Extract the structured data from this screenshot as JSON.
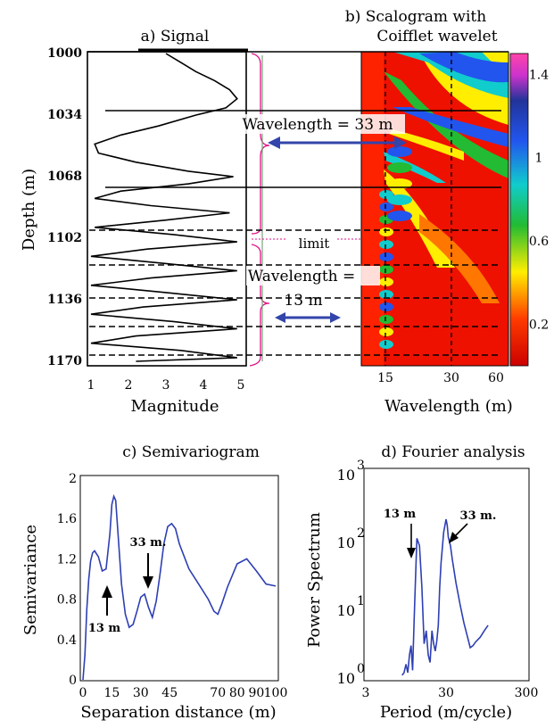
{
  "chart_data": [
    {
      "panel": "a",
      "type": "line",
      "title": "a) Signal",
      "xlabel": "Magnitude",
      "ylabel": "Depth (m)",
      "xlim": [
        1,
        5
      ],
      "ylim": [
        1000,
        1170
      ],
      "x_ticks": [
        "1",
        "2",
        "3",
        "4",
        "5"
      ],
      "y_ticks": [
        "1000",
        "1034",
        "1068",
        "1102",
        "1136",
        "1170"
      ],
      "series": [
        {
          "depth": [
            1000,
            1005,
            1010,
            1015,
            1020,
            1025,
            1030,
            1034,
            1040,
            1045,
            1050,
            1055,
            1060,
            1065,
            1068,
            1072,
            1076,
            1080,
            1084,
            1088,
            1092,
            1096,
            1100,
            1104,
            1108,
            1112,
            1116,
            1120,
            1124,
            1128,
            1132,
            1136,
            1140,
            1144,
            1148,
            1152,
            1156,
            1160,
            1164,
            1168,
            1170
          ],
          "magnitude": [
            3.0,
            3.4,
            3.8,
            4.3,
            4.7,
            4.9,
            4.6,
            3.8,
            2.8,
            1.8,
            1.1,
            1.2,
            2.2,
            3.6,
            4.8,
            3.6,
            1.8,
            1.1,
            2.6,
            4.7,
            3.0,
            1.1,
            3.2,
            4.9,
            2.5,
            1.0,
            3.0,
            4.9,
            2.6,
            1.0,
            3.0,
            4.9,
            2.4,
            1.0,
            3.2,
            4.9,
            2.2,
            1.0,
            3.4,
            4.9,
            2.2
          ]
        }
      ],
      "annotations": [
        "limit"
      ]
    },
    {
      "panel": "b",
      "type": "heatmap",
      "title_lines": [
        "b) Scalogram with",
        "Coifflet wavelet"
      ],
      "xlabel": "Wavelength  (m)",
      "x_ticks": [
        "15",
        "30",
        "60"
      ],
      "colorbar_ticks": [
        "1.4",
        "1",
        "0.6",
        "0.2"
      ],
      "colorbar_range": [
        0,
        1.5
      ],
      "annotations": [
        "Wavelength = 33 m",
        "Wavelength =",
        "13 m"
      ]
    },
    {
      "panel": "c",
      "type": "line",
      "title": "c) Semivariogram",
      "xlabel": "Separation distance (m)",
      "ylabel": "Semivariance",
      "xlim": [
        0,
        100
      ],
      "ylim": [
        0,
        2
      ],
      "x_ticks": [
        "0",
        "15",
        "30",
        "45",
        "70",
        "80",
        "90",
        "100"
      ],
      "y_ticks": [
        "0",
        "0.4",
        "0.8",
        "1.2",
        "1.6",
        "2"
      ],
      "series": [
        {
          "x": [
            0,
            1,
            2,
            3,
            4,
            5,
            6,
            8,
            10,
            12,
            14,
            15,
            16,
            17,
            18,
            20,
            22,
            24,
            26,
            28,
            30,
            32,
            34,
            36,
            38,
            40,
            42,
            44,
            46,
            48,
            50,
            55,
            60,
            65,
            68,
            70,
            72,
            75,
            80,
            85,
            90,
            95,
            100
          ],
          "y": [
            0,
            0.25,
            0.7,
            1.0,
            1.18,
            1.26,
            1.28,
            1.22,
            1.08,
            1.1,
            1.45,
            1.74,
            1.82,
            1.78,
            1.5,
            0.95,
            0.65,
            0.52,
            0.55,
            0.68,
            0.82,
            0.85,
            0.72,
            0.62,
            0.78,
            1.05,
            1.35,
            1.52,
            1.55,
            1.5,
            1.35,
            1.1,
            0.95,
            0.8,
            0.68,
            0.65,
            0.75,
            0.92,
            1.15,
            1.2,
            1.08,
            0.95,
            0.93
          ]
        }
      ],
      "annotations": [
        "33 m.",
        "13 m"
      ]
    },
    {
      "panel": "d",
      "type": "line",
      "title": "d) Fourier analysis",
      "xlabel": "Period (m/cycle)",
      "ylabel": "Power Spectrum",
      "xscale": "log",
      "yscale": "log",
      "xlim": [
        3,
        300
      ],
      "ylim": [
        1,
        1000
      ],
      "x_ticks": [
        "3",
        "30",
        "300"
      ],
      "y_ticks": [
        {
          "base": "10",
          "exp": "0"
        },
        {
          "base": "10",
          "exp": "1"
        },
        {
          "base": "10",
          "exp": "2"
        },
        {
          "base": "10",
          "exp": "3"
        }
      ],
      "series": [
        {
          "x": [
            8.5,
            9.0,
            9.5,
            10,
            10.5,
            11,
            11.5,
            12,
            12.5,
            13,
            14,
            15,
            16,
            17,
            18,
            19,
            20,
            21,
            22,
            23,
            24,
            25,
            26,
            28,
            30,
            31,
            32,
            34,
            36,
            40,
            45,
            50,
            55,
            60,
            65,
            70,
            80,
            90,
            100
          ],
          "y": [
            1.1,
            1.2,
            1.6,
            1.2,
            2.2,
            3.0,
            1.3,
            7.0,
            30,
            115,
            90,
            22,
            3.2,
            5,
            2.2,
            1.7,
            5,
            3.2,
            2.5,
            3.5,
            6,
            22,
            50,
            140,
            220,
            180,
            120,
            90,
            55,
            25,
            12,
            6.5,
            4.2,
            2.8,
            3.0,
            3.4,
            4.0,
            5.0,
            6.0
          ]
        }
      ],
      "annotations": [
        "13 m",
        "33 m."
      ]
    }
  ]
}
